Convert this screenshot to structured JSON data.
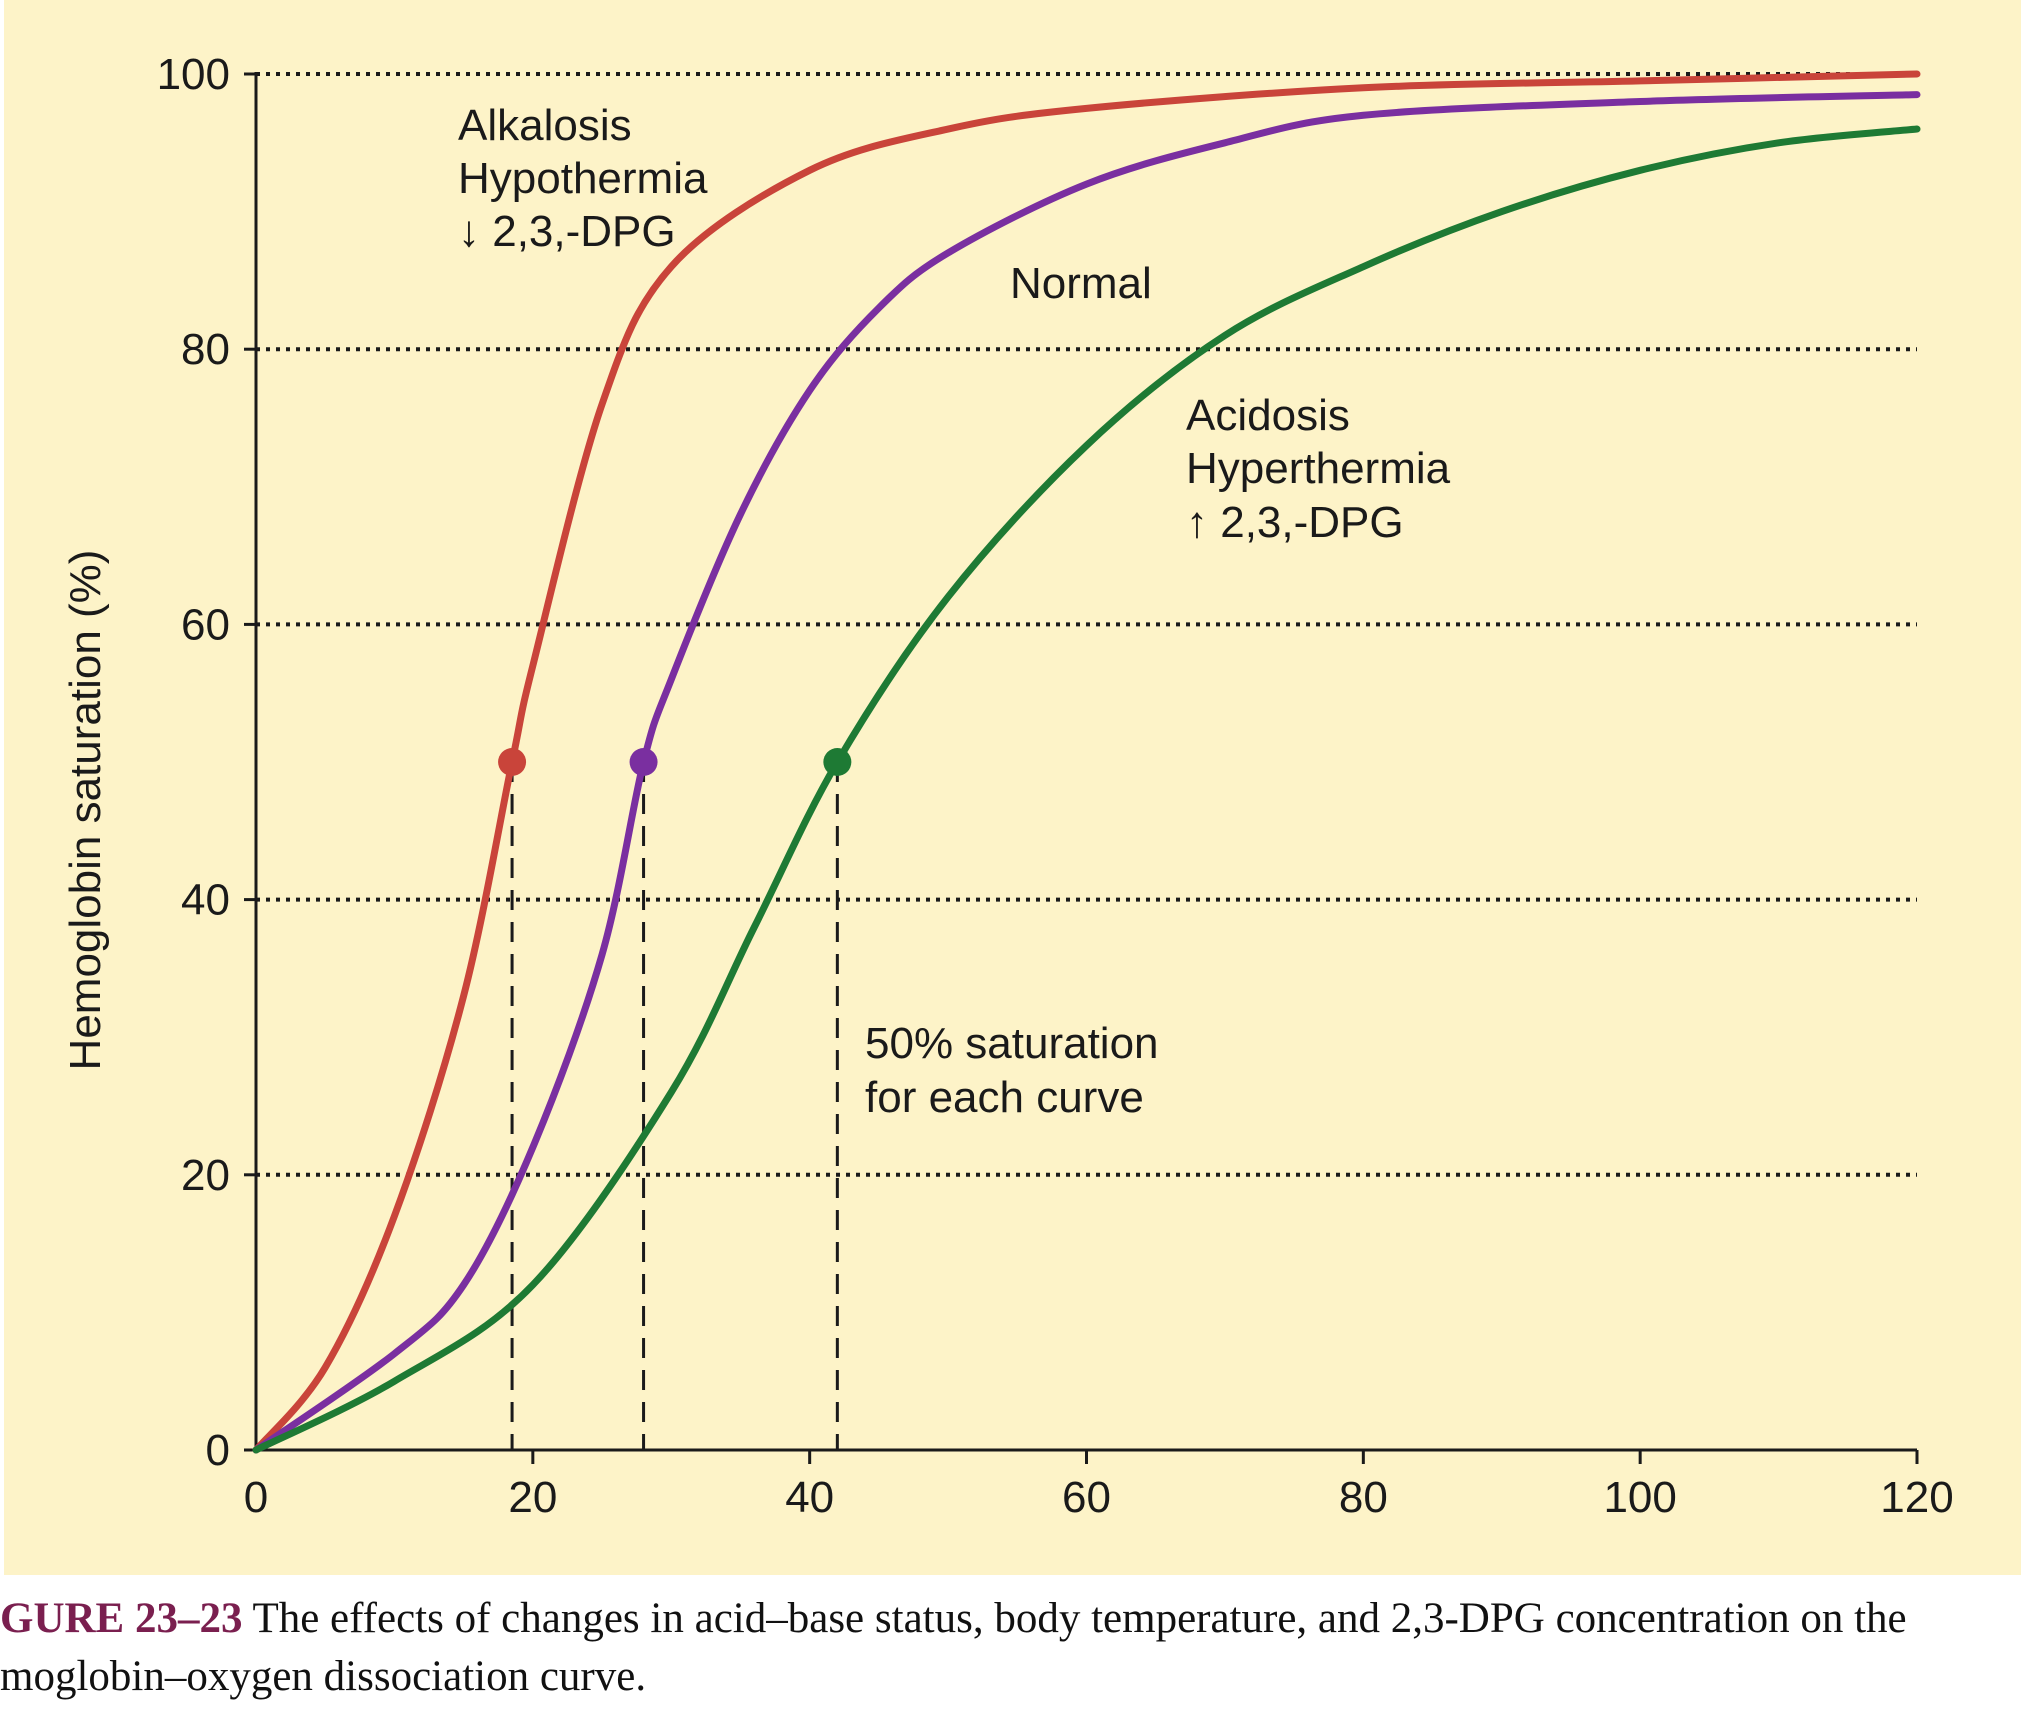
{
  "chart_data": {
    "type": "line",
    "ylabel": "Hemoglobin saturation (%)",
    "xlabel": "",
    "xlim": [
      0,
      120
    ],
    "ylim": [
      0,
      100
    ],
    "x_ticks": [
      "0",
      "20",
      "40",
      "60",
      "80",
      "100",
      "120"
    ],
    "y_ticks": [
      "0",
      "20",
      "40",
      "60",
      "80",
      "100"
    ],
    "grid": "dotted horizontal lines at 20, 40, 60, 80, 100",
    "series": [
      {
        "color": "#c9443a",
        "p50": 18.5,
        "points": [
          [
            0,
            0
          ],
          [
            5,
            6
          ],
          [
            10,
            17
          ],
          [
            15,
            33
          ],
          [
            18.5,
            50
          ],
          [
            20,
            57
          ],
          [
            25,
            76
          ],
          [
            30,
            86
          ],
          [
            40,
            93
          ],
          [
            50,
            96
          ],
          [
            60,
            97.5
          ],
          [
            80,
            99
          ],
          [
            100,
            99.5
          ],
          [
            120,
            100
          ]
        ]
      },
      {
        "color": "#7a2fa0",
        "p50": 28,
        "points": [
          [
            0,
            0
          ],
          [
            10,
            7
          ],
          [
            15,
            12
          ],
          [
            20,
            22
          ],
          [
            25,
            36
          ],
          [
            28,
            50
          ],
          [
            30,
            56
          ],
          [
            35,
            68
          ],
          [
            40,
            77
          ],
          [
            45,
            83
          ],
          [
            50,
            87
          ],
          [
            60,
            92
          ],
          [
            70,
            95
          ],
          [
            80,
            97
          ],
          [
            100,
            98
          ],
          [
            120,
            98.5
          ]
        ]
      },
      {
        "color": "#1e7a34",
        "p50": 42,
        "points": [
          [
            0,
            0
          ],
          [
            10,
            5
          ],
          [
            20,
            12
          ],
          [
            30,
            26
          ],
          [
            36,
            38
          ],
          [
            42,
            50
          ],
          [
            50,
            62
          ],
          [
            60,
            73
          ],
          [
            70,
            81
          ],
          [
            80,
            86
          ],
          [
            90,
            90
          ],
          [
            100,
            93
          ],
          [
            110,
            95
          ],
          [
            120,
            96
          ]
        ]
      }
    ],
    "p50_dots": [
      {
        "x": 18.5,
        "y": 50,
        "color": "#c9443a"
      },
      {
        "x": 28,
        "y": 50,
        "color": "#7a2fa0"
      },
      {
        "x": 42,
        "y": 50,
        "color": "#1e7a34"
      }
    ],
    "annotations": {
      "left_shift": [
        "Alkalosis",
        "Hypothermia",
        "↓ 2,3,-DPG"
      ],
      "normal": "Normal",
      "right_shift": [
        "Acidosis",
        "Hyperthermia",
        "↑ 2,3,-DPG"
      ],
      "p50_note": [
        "50% saturation",
        "for each curve"
      ]
    }
  },
  "caption": {
    "label": "GURE 23–23",
    "line1_text": " The effects of changes in acid–base status, body temperature, and 2,3-DPG concentration on the",
    "line2_text": "moglobin–oxygen dissociation curve."
  }
}
